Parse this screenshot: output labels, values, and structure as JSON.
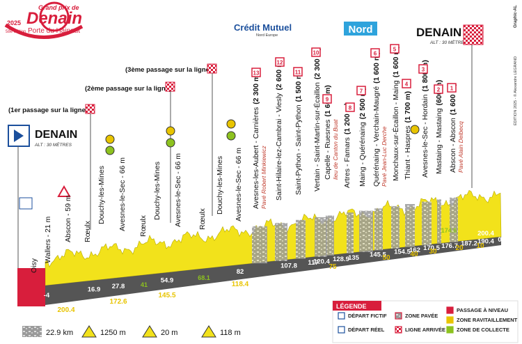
{
  "header": {
    "edition_year": "2025",
    "name_top": "Grand prix de",
    "name": "Denain",
    "name_bottom": "Porte du Hainaut",
    "edition": "58e édition"
  },
  "sponsors": {
    "bank": "Crédit Mutuel",
    "bank_sub": "Nord Europe",
    "region": "Nord",
    "credit": "ÉDITION 2025 - © Alexandre LEGRAND",
    "graphic": "Graphic-AL"
  },
  "start": {
    "name": "DENAIN",
    "alt": "ALT : 30 MÈTRES"
  },
  "finish": {
    "name": "DENAIN",
    "alt": "ALT : 30 MÈTRES"
  },
  "passages": [
    "(1er passage sur la ligne)",
    "(2ème passage sur la ligne)",
    "(3ème passage sur la ligne)"
  ],
  "places": [
    {
      "name": "Oisy"
    },
    {
      "name": "Wallers - 21 m"
    },
    {
      "name": "Abscon - 59 m"
    },
    {
      "name": "Rœulx"
    },
    {
      "name": "Douchy-les-Mines"
    },
    {
      "name": "Avesnes-le-Sec - 66 m"
    },
    {
      "name": "Rœulx"
    },
    {
      "name": "Douchy-les-Mines"
    },
    {
      "name": "Avesnes-le-Sec - 66 m"
    },
    {
      "name": "Rœulx"
    },
    {
      "name": "Douchy-les-Mines"
    },
    {
      "name": "Avesnes-le-Sec - 66 m"
    },
    {
      "name": "Avesnes-les-Aubert - Carnières",
      "length": "(2 300 m)",
      "sector": "13",
      "note": "Pavé Robert Minkiewicz"
    },
    {
      "name": "Saint-Hilaire-lez-Cambrai - Viesly",
      "length": "(2 600 m)",
      "sector": "12"
    },
    {
      "name": "Saint-Python - Saint-Python",
      "length": "(1 500 m)",
      "sector": "11"
    },
    {
      "name": "Vertain - Saint-Martin-sur-Écaillon",
      "length": "(2 300 m)",
      "sector": "10"
    },
    {
      "name": "Capelle - Ruesnes",
      "length": "(1 600 m)",
      "sector": "9",
      "note": "lieu de Canton du Buat"
    },
    {
      "name": "Artres - Famars",
      "length": "(1 200 m)",
      "sector": "8"
    },
    {
      "name": "Maing - Quérénaing",
      "length": "(2 500 m)",
      "sector": "7"
    },
    {
      "name": "Quérénaing - Verchain-Maugré",
      "length": "(1 600 m)",
      "sector": "6",
      "note": "Pavé Jean-Luc Derche"
    },
    {
      "name": "Monchaux-sur-Écaillon - Maing",
      "length": "(1 600 m)",
      "sector": "5"
    },
    {
      "name": "Thiant - Haspres",
      "length": "(1 700 m)",
      "sector": "4"
    },
    {
      "name": "Avesnes-le-Sec - Hordain",
      "length": "(1 800 m)",
      "sector": "3"
    },
    {
      "name": "Mastaing - Mastaing",
      "length": "(600 m)",
      "sector": "2"
    },
    {
      "name": "Abscon - Abscon",
      "length": "(1 600 m)",
      "sector": "1",
      "note": "Pavé Alain Delbecq"
    }
  ],
  "km_done": [
    "-4",
    "16.9",
    "27.8",
    "54.9",
    "82",
    "107.8",
    "117",
    "120.4",
    "128.9",
    "135",
    "145.5",
    "154.5",
    "162",
    "170.5",
    "176.7",
    "187.2",
    "190.4",
    "0"
  ],
  "km_to_go": [
    "200.4",
    "172.6",
    "145.5",
    "118.4",
    "75",
    "50",
    "40",
    "30",
    "20",
    "10"
  ],
  "km_finish": "200.4",
  "km_feed": [
    "41",
    "68.1",
    "174.6"
  ],
  "legend": {
    "title": "LÉGENDE",
    "items": [
      "DÉPART FICTIF",
      "DÉPART RÉEL",
      "ZONE PAVÉE",
      "LIGNE ARRIVÉE",
      "PASSAGE À NIVEAU",
      "ZONE RAVITAILLEMENT",
      "ZONE DE COLLECTE"
    ]
  },
  "stats": [
    "22.9 km",
    "1250 m",
    "20 m",
    "118 m"
  ]
}
